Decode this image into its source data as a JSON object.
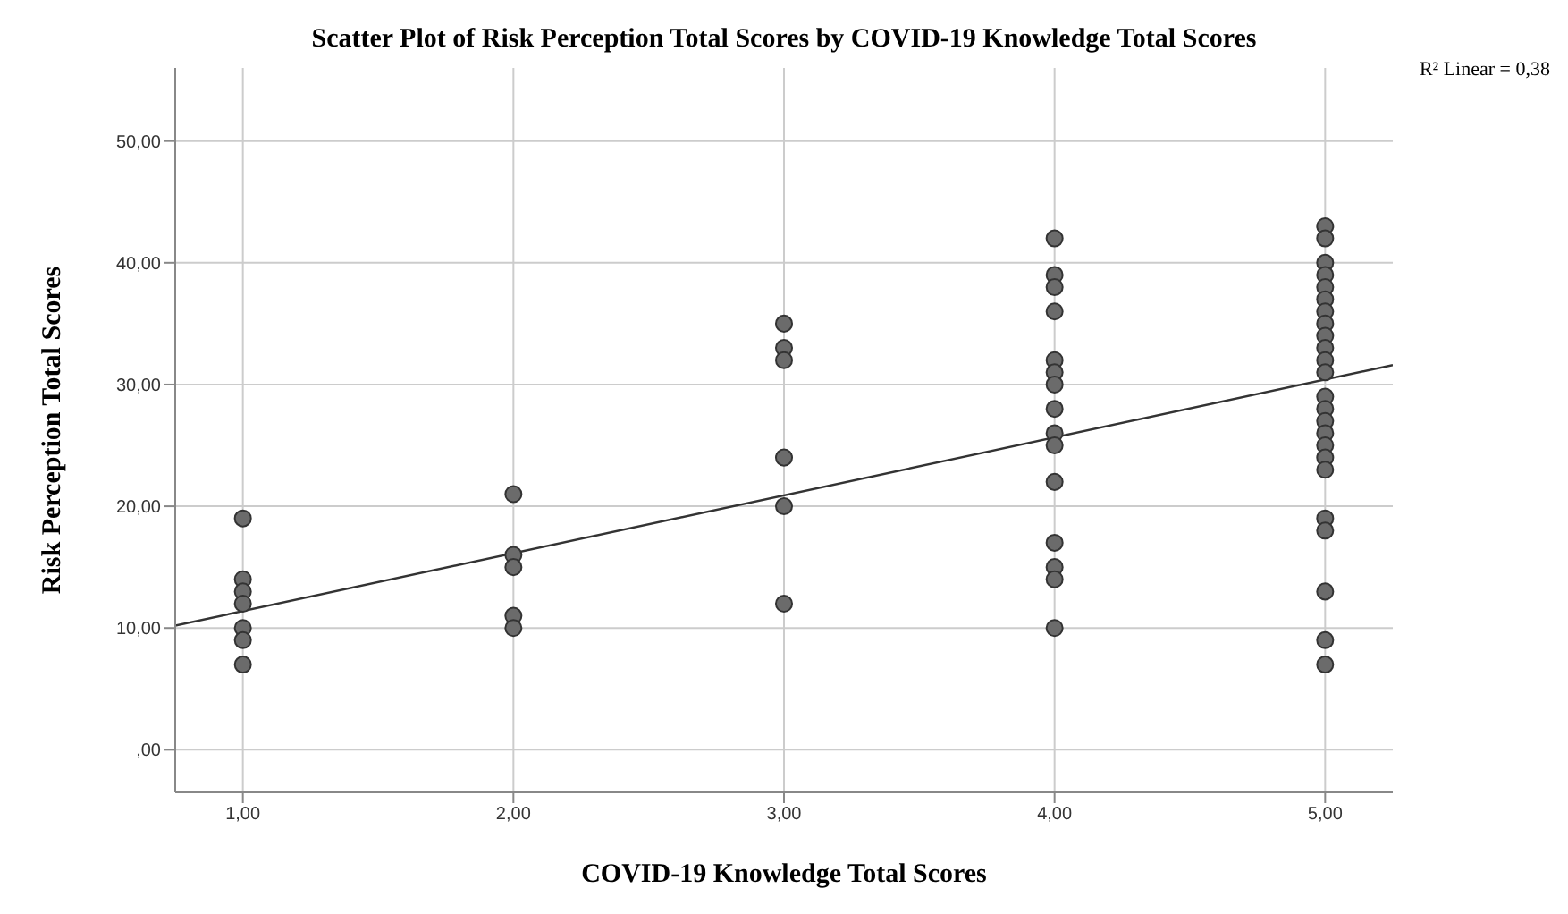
{
  "chart_data": {
    "type": "scatter",
    "title": "Scatter Plot of Risk Perception Total Scores by COVID-19 Knowledge Total Scores",
    "xlabel": "COVID-19 Knowledge Total Scores",
    "ylabel": "Risk Perception Total Scores",
    "annotations": [
      "R² Linear = 0,38"
    ],
    "series": [
      {
        "color": "#6b6b6b",
        "x": [
          1,
          1,
          1,
          1,
          1,
          1,
          1,
          2,
          2,
          2,
          2,
          2,
          3,
          3,
          3,
          3,
          3,
          3,
          4,
          4,
          4,
          4,
          4,
          4,
          4,
          4,
          4,
          4,
          4,
          4,
          4,
          4,
          4,
          5,
          5,
          5,
          5,
          5,
          5,
          5,
          5,
          5,
          5,
          5,
          5,
          5,
          5,
          5,
          5,
          5,
          5,
          5,
          5,
          5,
          5,
          5,
          5
        ],
        "values": [
          19,
          14,
          13,
          12,
          10,
          9,
          7,
          21,
          16,
          15,
          11,
          10,
          35,
          33,
          32,
          24,
          20,
          12,
          42,
          39,
          38,
          36,
          32,
          31,
          30,
          28,
          26,
          25,
          22,
          17,
          15,
          14,
          10,
          43,
          42,
          40,
          39,
          38,
          37,
          36,
          35,
          34,
          33,
          32,
          31,
          29,
          28,
          27,
          26,
          25,
          24,
          23,
          19,
          18,
          13,
          9,
          7
        ]
      },
      {
        "type": "line",
        "marker": "none",
        "color": "#333333",
        "x": [
          0.75,
          5.25
        ],
        "values": [
          10.2,
          31.6
        ]
      }
    ],
    "marker": "circle",
    "grid": true,
    "xlim": [
      0.75,
      5.25
    ],
    "ylim": [
      -3.5,
      56
    ],
    "xticks": [
      {
        "value": 1,
        "label": "1,00"
      },
      {
        "value": 2,
        "label": "2,00"
      },
      {
        "value": 3,
        "label": "3,00"
      },
      {
        "value": 4,
        "label": "4,00"
      },
      {
        "value": 5,
        "label": "5,00"
      }
    ],
    "yticks": [
      {
        "value": 0,
        "label": ",00"
      },
      {
        "value": 10,
        "label": "10,00"
      },
      {
        "value": 20,
        "label": "20,00"
      },
      {
        "value": 30,
        "label": "30,00"
      },
      {
        "value": 40,
        "label": "40,00"
      },
      {
        "value": 50,
        "label": "50,00"
      }
    ]
  }
}
